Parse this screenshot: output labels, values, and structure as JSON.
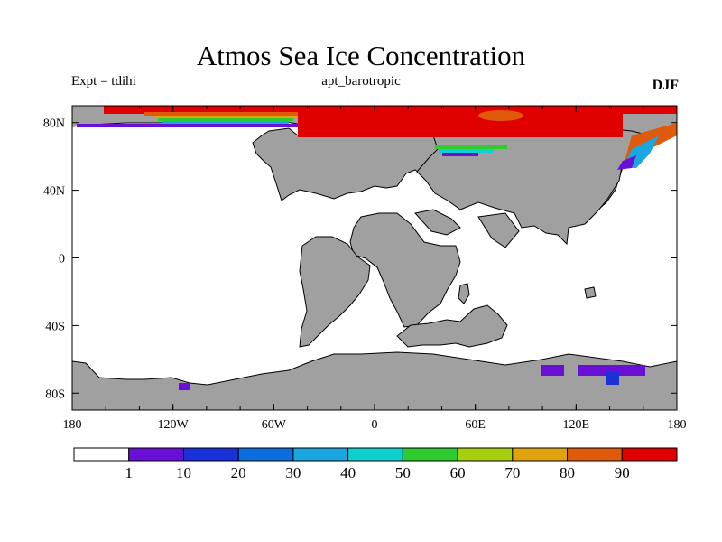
{
  "title": "Atmos Sea Ice Concentration",
  "left_label": "Expt = tdihi",
  "center_label": "apt_barotropic",
  "right_label": "DJF",
  "map": {
    "lon_range": [
      -180,
      180
    ],
    "lat_range": [
      -90,
      90
    ],
    "x_ticks": [
      {
        "value": -180,
        "label": "180"
      },
      {
        "value": -120,
        "label": "120W"
      },
      {
        "value": -60,
        "label": "60W"
      },
      {
        "value": 0,
        "label": "0"
      },
      {
        "value": 60,
        "label": "60E"
      },
      {
        "value": 120,
        "label": "120E"
      },
      {
        "value": 180,
        "label": "180"
      }
    ],
    "y_ticks": [
      {
        "value": 80,
        "label": "80N"
      },
      {
        "value": 40,
        "label": "40N"
      },
      {
        "value": 0,
        "label": "0"
      },
      {
        "value": -40,
        "label": "40S"
      },
      {
        "value": -80,
        "label": "80S"
      }
    ],
    "land_color": "#a0a0a0",
    "ocean_color": "#ffffff",
    "coast_color": "#000000"
  },
  "colorbar": {
    "colors": [
      "#ffffff",
      "#6a10d6",
      "#1a30d8",
      "#0b6de0",
      "#1aa6e0",
      "#0fd0cf",
      "#2ecc2e",
      "#a6d00e",
      "#e0a30b",
      "#e05a0b",
      "#e00000"
    ],
    "labels": [
      "1",
      "10",
      "20",
      "30",
      "40",
      "50",
      "60",
      "70",
      "80",
      "90"
    ]
  }
}
